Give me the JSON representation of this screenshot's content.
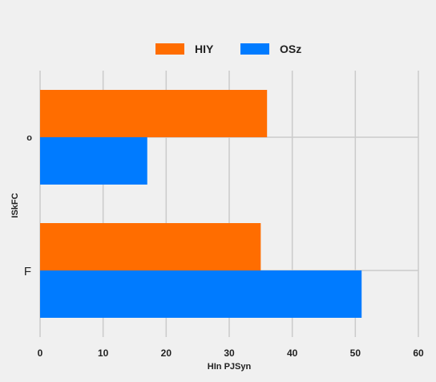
{
  "chart_data": {
    "type": "bar",
    "orientation": "horizontal",
    "categories": [
      "o",
      "F"
    ],
    "series": [
      {
        "name": "HIY",
        "color": "#ff6d00",
        "values": [
          36,
          35
        ]
      },
      {
        "name": "OSz",
        "color": "#007bff",
        "values": [
          17,
          51
        ]
      }
    ],
    "xlabel": "HIn  PJSyn",
    "ylabel": "ISkFC",
    "xlim": [
      0,
      60
    ],
    "xticks": [
      "0",
      "10",
      "20",
      "30",
      "40",
      "50",
      "60"
    ],
    "grid": true,
    "legend_position": "top-center"
  }
}
